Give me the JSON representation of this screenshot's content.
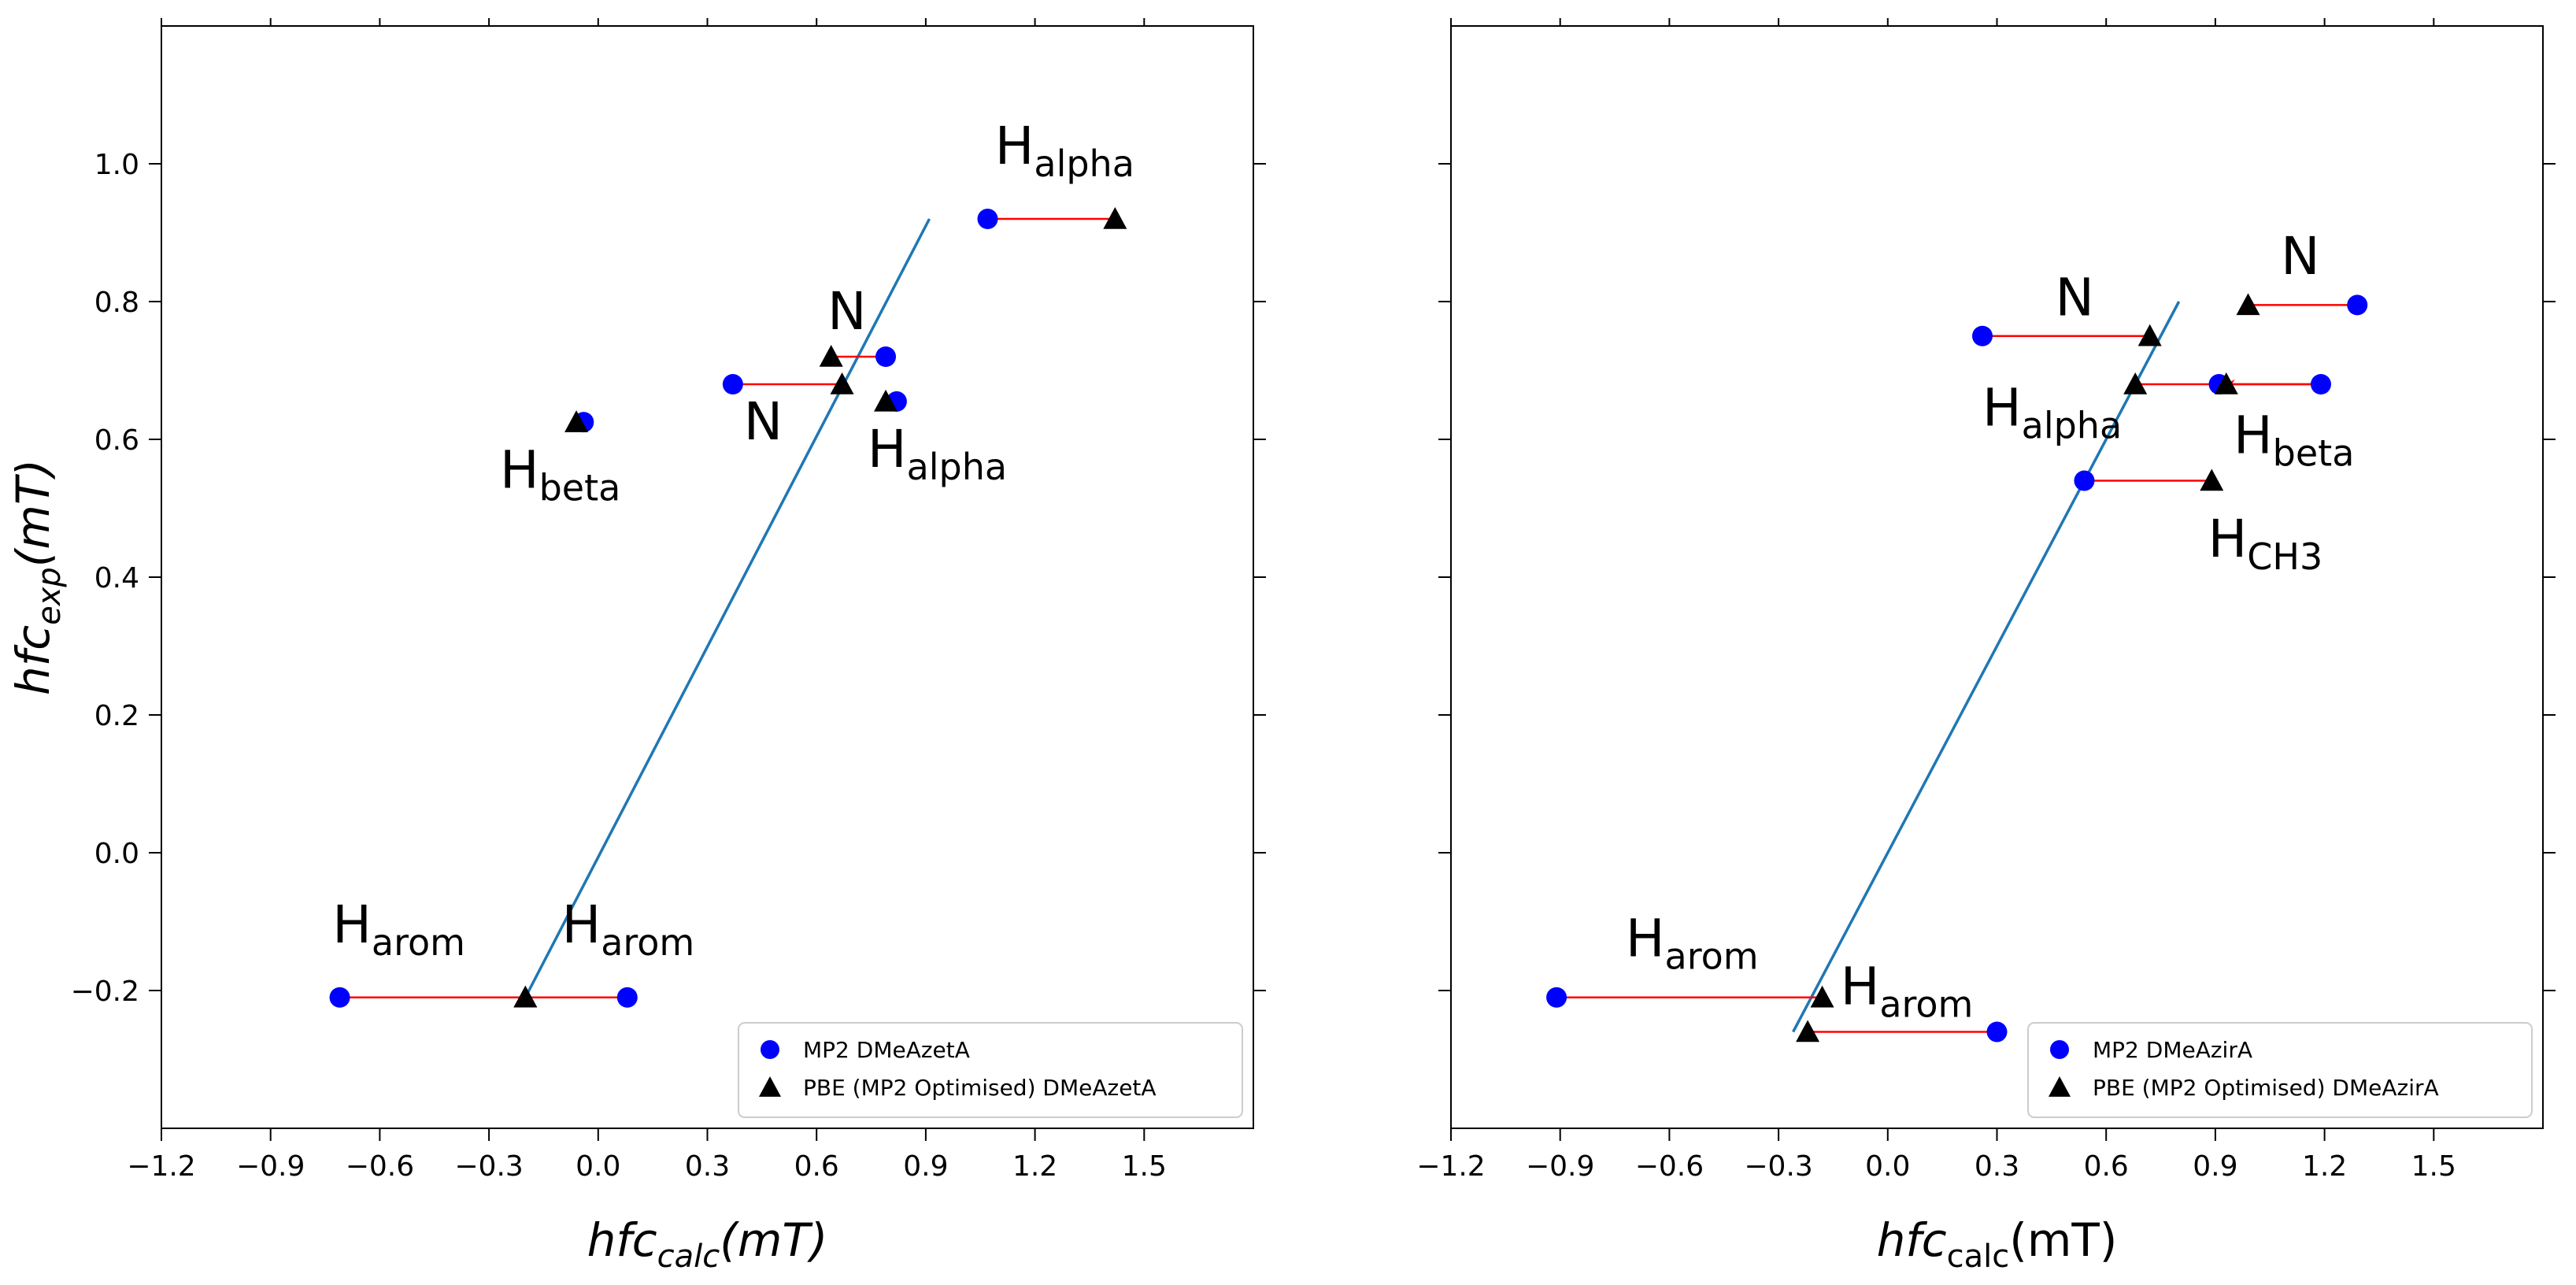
{
  "chart_data": [
    {
      "type": "scatter",
      "panel": "left",
      "xlabel": {
        "main": "hfc",
        "sub": "calc",
        "unit": "(mT)",
        "italic_sub": true
      },
      "ylabel": {
        "main": "hfc",
        "sub": "exp",
        "unit": "(mT)"
      },
      "xlim": [
        -1.2,
        1.8
      ],
      "ylim": [
        -0.4,
        1.2
      ],
      "x_ticks": [
        -1.2,
        -0.9,
        -0.6,
        -0.3,
        0.0,
        0.3,
        0.6,
        0.9,
        1.2,
        1.5
      ],
      "x_tick_labels": [
        "−1.2",
        "−0.9",
        "−0.6",
        "−0.3",
        "0.0",
        "0.3",
        "0.6",
        "0.9",
        "1.2",
        "1.5"
      ],
      "y_ticks": [
        -0.2,
        0.0,
        0.2,
        0.4,
        0.6,
        0.8,
        1.0
      ],
      "y_tick_labels": [
        "−0.2",
        "0.0",
        "0.2",
        "0.4",
        "0.6",
        "0.8",
        "1.0"
      ],
      "fit_line": {
        "x": [
          -0.2,
          0.91
        ],
        "y": [
          -0.21,
          0.92
        ],
        "color": "#1f77b4"
      },
      "series": [
        {
          "name": "MP2 DMeAzetA",
          "marker": "circle",
          "color": "#0000ff",
          "x": [
            -0.71,
            0.08,
            -0.04,
            0.37,
            0.79,
            0.82,
            1.07
          ],
          "y": [
            -0.21,
            -0.21,
            0.625,
            0.68,
            0.72,
            0.655,
            0.92
          ]
        },
        {
          "name": "PBE (MP2 Optimised) DMeAzetA",
          "marker": "triangle",
          "color": "#000000",
          "x": [
            -0.2,
            -0.2,
            -0.06,
            0.67,
            0.64,
            0.79,
            1.42
          ],
          "y": [
            -0.21,
            -0.21,
            0.625,
            0.68,
            0.72,
            0.655,
            0.92
          ]
        }
      ],
      "arrows": [
        {
          "from": [
            -0.2,
            -0.21
          ],
          "to": [
            -0.71,
            -0.21
          ]
        },
        {
          "from": [
            -0.2,
            -0.21
          ],
          "to": [
            0.08,
            -0.21
          ]
        },
        {
          "from": [
            -0.06,
            0.625
          ],
          "to": [
            -0.04,
            0.625
          ]
        },
        {
          "from": [
            0.67,
            0.68
          ],
          "to": [
            0.37,
            0.68
          ]
        },
        {
          "from": [
            0.64,
            0.72
          ],
          "to": [
            0.79,
            0.72
          ]
        },
        {
          "from": [
            0.79,
            0.655
          ],
          "to": [
            0.82,
            0.655
          ]
        },
        {
          "from": [
            1.42,
            0.92
          ],
          "to": [
            1.07,
            0.92
          ]
        }
      ],
      "arrow_color": "#ff0000",
      "annotations": [
        {
          "main": "H",
          "sub": "arom",
          "x": -0.73,
          "y": -0.13
        },
        {
          "main": "H",
          "sub": "arom",
          "x": -0.1,
          "y": -0.13
        },
        {
          "main": "H",
          "sub": "beta",
          "x": -0.27,
          "y": 0.53
        },
        {
          "main": "N",
          "sub": "",
          "x": 0.4,
          "y": 0.6
        },
        {
          "main": "N",
          "sub": "",
          "x": 0.63,
          "y": 0.76
        },
        {
          "main": "H",
          "sub": "alpha",
          "x": 0.74,
          "y": 0.56
        },
        {
          "main": "H",
          "sub": "alpha",
          "x": 1.09,
          "y": 1.0
        }
      ],
      "legend": {
        "location": "lower-right",
        "entries": [
          "MP2 DMeAzetA",
          "PBE (MP2 Optimised) DMeAzetA"
        ]
      }
    },
    {
      "type": "scatter",
      "panel": "right",
      "xlabel": {
        "main": "hfc",
        "sub": "calc",
        "unit": "(mT)",
        "italic_sub": false
      },
      "ylabel": null,
      "xlim": [
        -1.2,
        1.8
      ],
      "ylim": [
        -0.4,
        1.2
      ],
      "x_ticks": [
        -1.2,
        -0.9,
        -0.6,
        -0.3,
        0.0,
        0.3,
        0.6,
        0.9,
        1.2,
        1.5
      ],
      "x_tick_labels": [
        "−1.2",
        "−0.9",
        "−0.6",
        "−0.3",
        "0.0",
        "0.3",
        "0.6",
        "0.9",
        "1.2",
        "1.5"
      ],
      "y_ticks": [
        -0.2,
        0.0,
        0.2,
        0.4,
        0.6,
        0.8,
        1.0
      ],
      "y_tick_labels": [],
      "fit_line": {
        "x": [
          -0.26,
          0.8
        ],
        "y": [
          -0.26,
          0.8
        ],
        "color": "#1f77b4"
      },
      "series": [
        {
          "name": "MP2 DMeAzirA",
          "marker": "circle",
          "color": "#0000ff",
          "x": [
            -0.91,
            0.3,
            0.54,
            0.91,
            1.19,
            0.26,
            1.29
          ],
          "y": [
            -0.21,
            -0.26,
            0.54,
            0.68,
            0.68,
            0.75,
            0.795
          ]
        },
        {
          "name": "PBE (MP2 Optimised) DMeAzirA",
          "marker": "triangle",
          "color": "#000000",
          "x": [
            -0.18,
            -0.22,
            0.89,
            0.68,
            0.93,
            0.72,
            0.99
          ],
          "y": [
            -0.21,
            -0.26,
            0.54,
            0.68,
            0.68,
            0.75,
            0.795
          ]
        }
      ],
      "arrows": [
        {
          "from": [
            -0.18,
            -0.21
          ],
          "to": [
            -0.91,
            -0.21
          ]
        },
        {
          "from": [
            -0.22,
            -0.26
          ],
          "to": [
            0.3,
            -0.26
          ]
        },
        {
          "from": [
            0.89,
            0.54
          ],
          "to": [
            0.54,
            0.54
          ]
        },
        {
          "from": [
            0.68,
            0.68
          ],
          "to": [
            0.91,
            0.68
          ]
        },
        {
          "from": [
            0.93,
            0.68
          ],
          "to": [
            1.19,
            0.68
          ]
        },
        {
          "from": [
            1.19,
            0.68
          ],
          "to": [
            0.93,
            0.68
          ]
        },
        {
          "from": [
            0.72,
            0.75
          ],
          "to": [
            0.26,
            0.75
          ]
        },
        {
          "from": [
            0.99,
            0.795
          ],
          "to": [
            1.29,
            0.795
          ]
        }
      ],
      "arrow_color": "#ff0000",
      "annotations": [
        {
          "main": "H",
          "sub": "arom",
          "x": -0.72,
          "y": -0.15
        },
        {
          "main": "H",
          "sub": "arom",
          "x": -0.13,
          "y": -0.22
        },
        {
          "main": "H",
          "sub": "CH3",
          "x": 0.88,
          "y": 0.43
        },
        {
          "main": "H",
          "sub": "alpha",
          "x": 0.26,
          "y": 0.62
        },
        {
          "main": "H",
          "sub": "beta",
          "x": 0.95,
          "y": 0.58
        },
        {
          "main": "N",
          "sub": "",
          "x": 0.46,
          "y": 0.78
        },
        {
          "main": "N",
          "sub": "",
          "x": 1.08,
          "y": 0.84
        }
      ],
      "legend": {
        "location": "lower-right",
        "entries": [
          "MP2 DMeAzirA",
          "PBE (MP2 Optimised) DMeAzirA"
        ]
      }
    }
  ]
}
